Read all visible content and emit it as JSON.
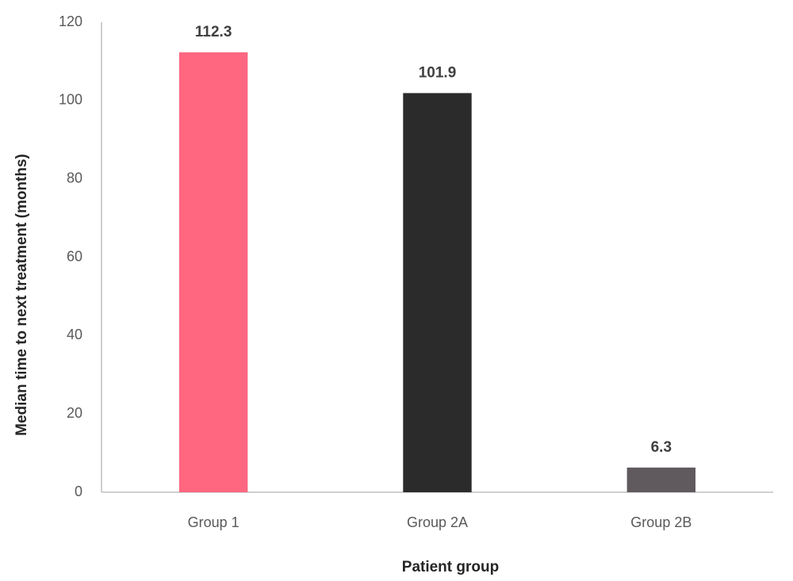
{
  "chart_data": {
    "type": "bar",
    "x_label": "Patient group",
    "y_label": "Median time to next treatment (months)",
    "categories": [
      "Group 1",
      "Group 2A",
      "Group 2B"
    ],
    "values": [
      112.3,
      101.9,
      6.3
    ],
    "colors": [
      "#ff6680",
      "#2b2b2b",
      "#605a5f"
    ],
    "ylim": [
      0,
      120
    ],
    "yticks": [
      0,
      20,
      40,
      60,
      80,
      100,
      120
    ],
    "grid": false
  }
}
